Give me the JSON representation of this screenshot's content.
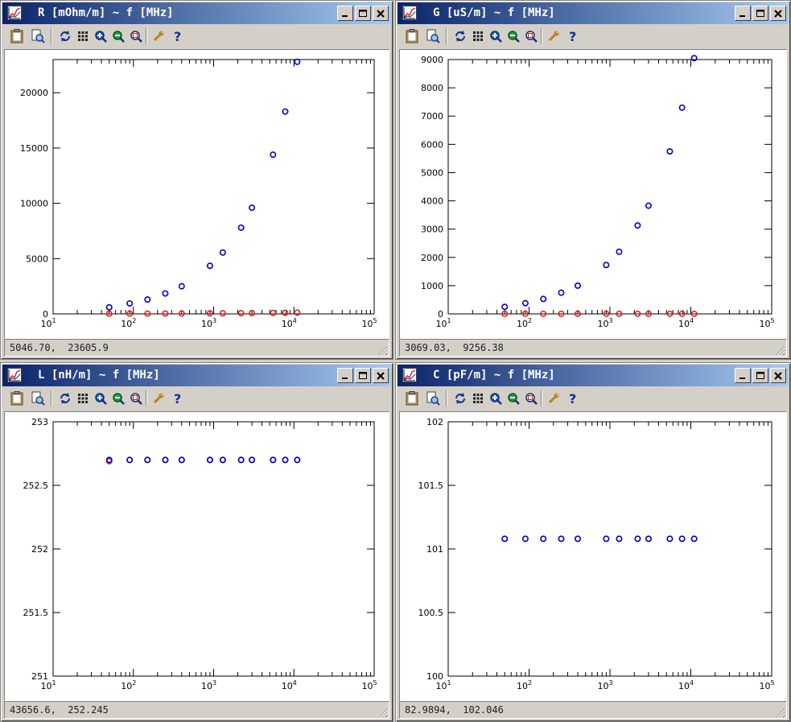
{
  "colors": {
    "series_blue": "#0000cc",
    "series_red": "#e02020",
    "title_start": "#0a246a",
    "title_end": "#a6caf0"
  },
  "toolbar_icons": [
    "clipboard-icon",
    "print-preview-icon",
    "refresh-icon",
    "grid-icon",
    "zoom-in-icon",
    "zoom-out-icon",
    "zoom-fit-icon",
    "settings-wrench-icon",
    "help-icon"
  ],
  "windows": [
    {
      "key": "R",
      "title": "R [mOhm/m] ~ f [MHz]",
      "status": "5046.70,  23605.9",
      "chart_data": {
        "type": "scatter",
        "xscale": "log",
        "xlim": [
          10,
          100000
        ],
        "ylim": [
          0,
          23000
        ],
        "xtick_labels": [
          {
            "base": "10",
            "exp": "1"
          },
          {
            "base": "10",
            "exp": "2"
          },
          {
            "base": "10",
            "exp": "3"
          },
          {
            "base": "10",
            "exp": "4"
          },
          {
            "base": "10",
            "exp": "5"
          }
        ],
        "ytick_labels": [
          "0",
          "5000",
          "10000",
          "15000",
          "20000"
        ],
        "yticks": [
          0,
          5000,
          10000,
          15000,
          20000
        ],
        "x": [
          50,
          90,
          150,
          250,
          400,
          900,
          1300,
          2200,
          3000,
          5500,
          7800,
          11000
        ],
        "series": [
          {
            "color": "blue",
            "values": [
              600,
              950,
              1300,
              1850,
              2500,
              4350,
              5550,
              7800,
              9600,
              14400,
              18300,
              22800
            ]
          },
          {
            "color": "red",
            "values": [
              20,
              25,
              30,
              35,
              40,
              50,
              55,
              65,
              70,
              90,
              100,
              115
            ]
          }
        ]
      }
    },
    {
      "key": "G",
      "title": "G [uS/m] ~ f [MHz]",
      "status": "3069.03,  9256.38",
      "chart_data": {
        "type": "scatter",
        "xscale": "log",
        "xlim": [
          10,
          100000
        ],
        "ylim": [
          0,
          9000
        ],
        "xtick_labels": [
          {
            "base": "10",
            "exp": "1"
          },
          {
            "base": "10",
            "exp": "2"
          },
          {
            "base": "10",
            "exp": "3"
          },
          {
            "base": "10",
            "exp": "4"
          },
          {
            "base": "10",
            "exp": "5"
          }
        ],
        "ytick_labels": [
          "0",
          "1000",
          "2000",
          "3000",
          "4000",
          "5000",
          "6000",
          "7000",
          "8000",
          "9000"
        ],
        "yticks": [
          0,
          1000,
          2000,
          3000,
          4000,
          5000,
          6000,
          7000,
          8000,
          9000
        ],
        "x": [
          50,
          90,
          150,
          250,
          400,
          900,
          1300,
          2200,
          3000,
          5500,
          7800,
          11000
        ],
        "series": [
          {
            "color": "blue",
            "values": [
              250,
              380,
              530,
              750,
              1000,
              1730,
              2200,
              3130,
              3830,
              5750,
              7300,
              9050
            ]
          },
          {
            "color": "red",
            "values": [
              5,
              5,
              5,
              5,
              5,
              5,
              5,
              5,
              5,
              5,
              5,
              5
            ]
          }
        ]
      }
    },
    {
      "key": "L",
      "title": "L [nH/m] ~ f [MHz]",
      "status": "43656.6,  252.245",
      "chart_data": {
        "type": "scatter",
        "xscale": "log",
        "xlim": [
          10,
          100000
        ],
        "ylim": [
          251,
          253
        ],
        "xtick_labels": [
          {
            "base": "10",
            "exp": "1"
          },
          {
            "base": "10",
            "exp": "2"
          },
          {
            "base": "10",
            "exp": "3"
          },
          {
            "base": "10",
            "exp": "4"
          },
          {
            "base": "10",
            "exp": "5"
          }
        ],
        "ytick_labels": [
          "251",
          "251.5",
          "252",
          "252.5",
          "253"
        ],
        "yticks": [
          251,
          251.5,
          252,
          252.5,
          253
        ],
        "x": [
          50,
          90,
          150,
          250,
          400,
          900,
          1300,
          2200,
          3000,
          5500,
          7800,
          11000
        ],
        "series": [
          {
            "color": "red",
            "values": [
              252.69,
              252.7,
              252.7,
              252.7,
              252.7,
              252.7,
              252.7,
              252.7,
              252.7,
              252.7,
              252.7,
              252.7
            ]
          },
          {
            "color": "blue",
            "values": [
              252.7,
              252.7,
              252.7,
              252.7,
              252.7,
              252.7,
              252.7,
              252.7,
              252.7,
              252.7,
              252.7,
              252.7
            ]
          }
        ]
      }
    },
    {
      "key": "C",
      "title": "C [pF/m] ~ f [MHz]",
      "status": "82.9894,  102.046",
      "chart_data": {
        "type": "scatter",
        "xscale": "log",
        "xlim": [
          10,
          100000
        ],
        "ylim": [
          100,
          102
        ],
        "xtick_labels": [
          {
            "base": "10",
            "exp": "1"
          },
          {
            "base": "10",
            "exp": "2"
          },
          {
            "base": "10",
            "exp": "3"
          },
          {
            "base": "10",
            "exp": "4"
          },
          {
            "base": "10",
            "exp": "5"
          }
        ],
        "ytick_labels": [
          "100",
          "100.5",
          "101",
          "101.5",
          "102"
        ],
        "yticks": [
          100,
          100.5,
          101,
          101.5,
          102
        ],
        "x": [
          50,
          90,
          150,
          250,
          400,
          900,
          1300,
          2200,
          3000,
          5500,
          7800,
          11000
        ],
        "series": [
          {
            "color": "blue",
            "values": [
              101.08,
              101.08,
              101.08,
              101.08,
              101.08,
              101.08,
              101.08,
              101.08,
              101.08,
              101.08,
              101.08,
              101.08
            ]
          }
        ]
      }
    }
  ]
}
